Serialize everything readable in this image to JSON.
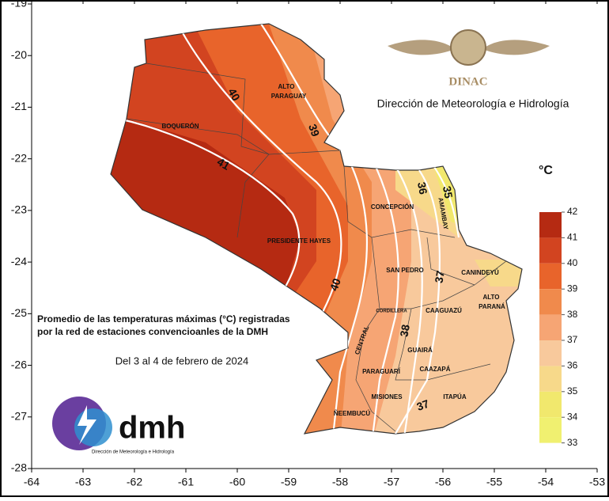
{
  "axes": {
    "xlim": [
      -64,
      -53
    ],
    "ylim": [
      -28,
      -19
    ],
    "xticks": [
      -64,
      -63,
      -62,
      -61,
      -60,
      -59,
      -58,
      -57,
      -56,
      -55,
      -54,
      -53
    ],
    "yticks": [
      -19,
      -20,
      -21,
      -22,
      -23,
      -24,
      -25,
      -26,
      -27,
      -28
    ]
  },
  "header": {
    "agency": "DINAC",
    "subtitle": "Dirección de Meteorología e Hidrología"
  },
  "caption": {
    "line1": "Promedio de las temperaturas máximas (°C) registradas",
    "line2": "por la red de estaciones convencioanles de la DMH",
    "dates": "Del 3 al 4 de febrero de 2024"
  },
  "logo": {
    "name": "dmh",
    "tagline": "Dirección de Meteorología e Hidrología"
  },
  "departments": [
    "ALTO",
    "PARAGUAY",
    "BOQUERÓN",
    "PRESIDENTE HAYES",
    "CONCEPCIÓN",
    "AMAMBAY",
    "SAN PEDRO",
    "CANINDEYÚ",
    "ALTO",
    "PARANÁ",
    "CAAGUAZÚ",
    "CORDILLERA",
    "CENTRAL",
    "GUAIRÁ",
    "PARAGUARÍ",
    "CAAZAPÁ",
    "MISIONES",
    "ITAPÚA",
    "ÑEEMBUCÚ"
  ],
  "isotherm_labels": [
    40,
    39,
    41,
    40,
    36,
    35,
    37,
    38,
    37
  ],
  "legend": {
    "unit": "°C",
    "values": [
      42,
      41,
      40,
      39,
      38,
      37,
      36,
      35,
      34,
      33
    ],
    "colors": [
      "#b52a12",
      "#d24420",
      "#e8642b",
      "#f08a4c",
      "#f6a574",
      "#f8c99c",
      "#f7d98a",
      "#f1e86d",
      "#f0f070"
    ]
  }
}
